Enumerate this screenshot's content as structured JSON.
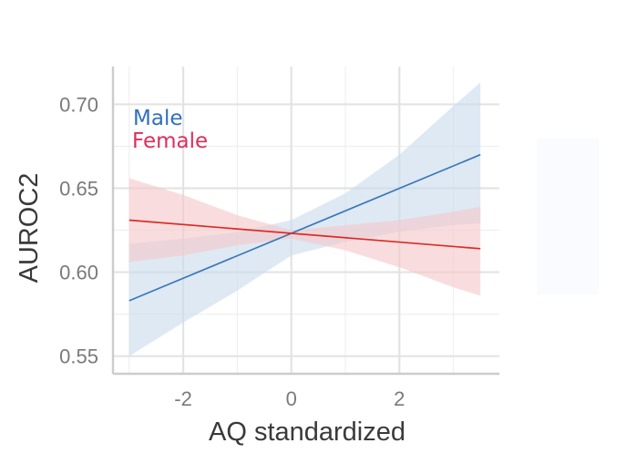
{
  "chart_data": {
    "type": "line",
    "xlabel": "AQ standardized",
    "ylabel": "AUROC2",
    "xlim": [
      -3.3,
      3.85
    ],
    "ylim": [
      0.5395,
      0.7225
    ],
    "xticks": [
      -2,
      0,
      2
    ],
    "xtick_labels": [
      "-2",
      "0",
      "2"
    ],
    "xminor": [
      -3,
      -1,
      1,
      3
    ],
    "yticks": [
      0.55,
      0.6,
      0.65,
      0.7
    ],
    "ytick_labels": [
      "0.55",
      "0.60",
      "0.65",
      "0.70"
    ],
    "yminor": [
      0.575,
      0.625,
      0.675
    ],
    "grid": true,
    "legend_position": "top-left",
    "series": [
      {
        "name": "Male",
        "color": "#3a78b8",
        "band_color": "#c9dbee",
        "x": [
          -3.0,
          3.5
        ],
        "y": [
          0.583,
          0.67
        ],
        "band_x": [
          -3.0,
          -2.0,
          -1.0,
          0.0,
          1.0,
          2.0,
          3.0,
          3.5
        ],
        "band_lower": [
          0.55,
          0.57,
          0.589,
          0.61,
          0.618,
          0.624,
          0.628,
          0.629
        ],
        "band_upper": [
          0.617,
          0.62,
          0.624,
          0.631,
          0.647,
          0.67,
          0.699,
          0.713
        ]
      },
      {
        "name": "Female",
        "color": "#dd2a24",
        "band_color": "#f6c8c9",
        "x": [
          -3.0,
          3.5
        ],
        "y": [
          0.631,
          0.614
        ],
        "band_x": [
          -3.0,
          -2.0,
          -1.0,
          0.0,
          1.0,
          2.0,
          3.0,
          3.5
        ],
        "band_lower": [
          0.606,
          0.61,
          0.616,
          0.62,
          0.613,
          0.603,
          0.591,
          0.586
        ],
        "band_upper": [
          0.656,
          0.646,
          0.634,
          0.625,
          0.628,
          0.631,
          0.636,
          0.639
        ]
      }
    ],
    "legend": [
      {
        "label": "Male",
        "color": "#2f6fc2"
      },
      {
        "label": "Female",
        "color": "#dc2f5e"
      }
    ]
  }
}
